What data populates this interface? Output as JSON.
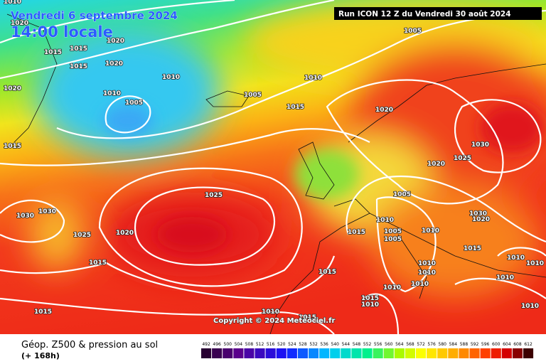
{
  "header": {
    "date": "Vendredi 6 septembre 2024",
    "time": "14:00 locale",
    "run": "Run ICON 12 Z du Vendredi 30 août 2024"
  },
  "copyright": "Copyright © 2024 Meteociel.fr",
  "footer": {
    "title": "Géop. Z500 & pression au sol",
    "lead": "(+ 168h)"
  },
  "legend": {
    "levels": [
      492,
      496,
      500,
      504,
      508,
      512,
      516,
      520,
      524,
      528,
      532,
      536,
      540,
      544,
      548,
      552,
      556,
      560,
      564,
      568,
      572,
      576,
      580,
      584,
      588,
      592,
      596,
      600,
      604,
      608,
      612
    ]
  },
  "isobar_labels": [
    1010,
    1020,
    1020,
    1015,
    1015,
    1015,
    1020,
    1010,
    1010,
    1005,
    1005,
    1020,
    1015,
    1010,
    1015,
    1005,
    1020,
    1030,
    1025,
    1020,
    1005,
    1025,
    1030,
    1030,
    1025,
    1020,
    1015,
    1015,
    1010,
    1015,
    1005,
    1005,
    1010,
    1030,
    1020,
    1015,
    1015,
    1010,
    1010,
    1010,
    1010,
    1015,
    1010,
    1010,
    1015,
    1010,
    1010,
    1010,
    1010
  ]
}
